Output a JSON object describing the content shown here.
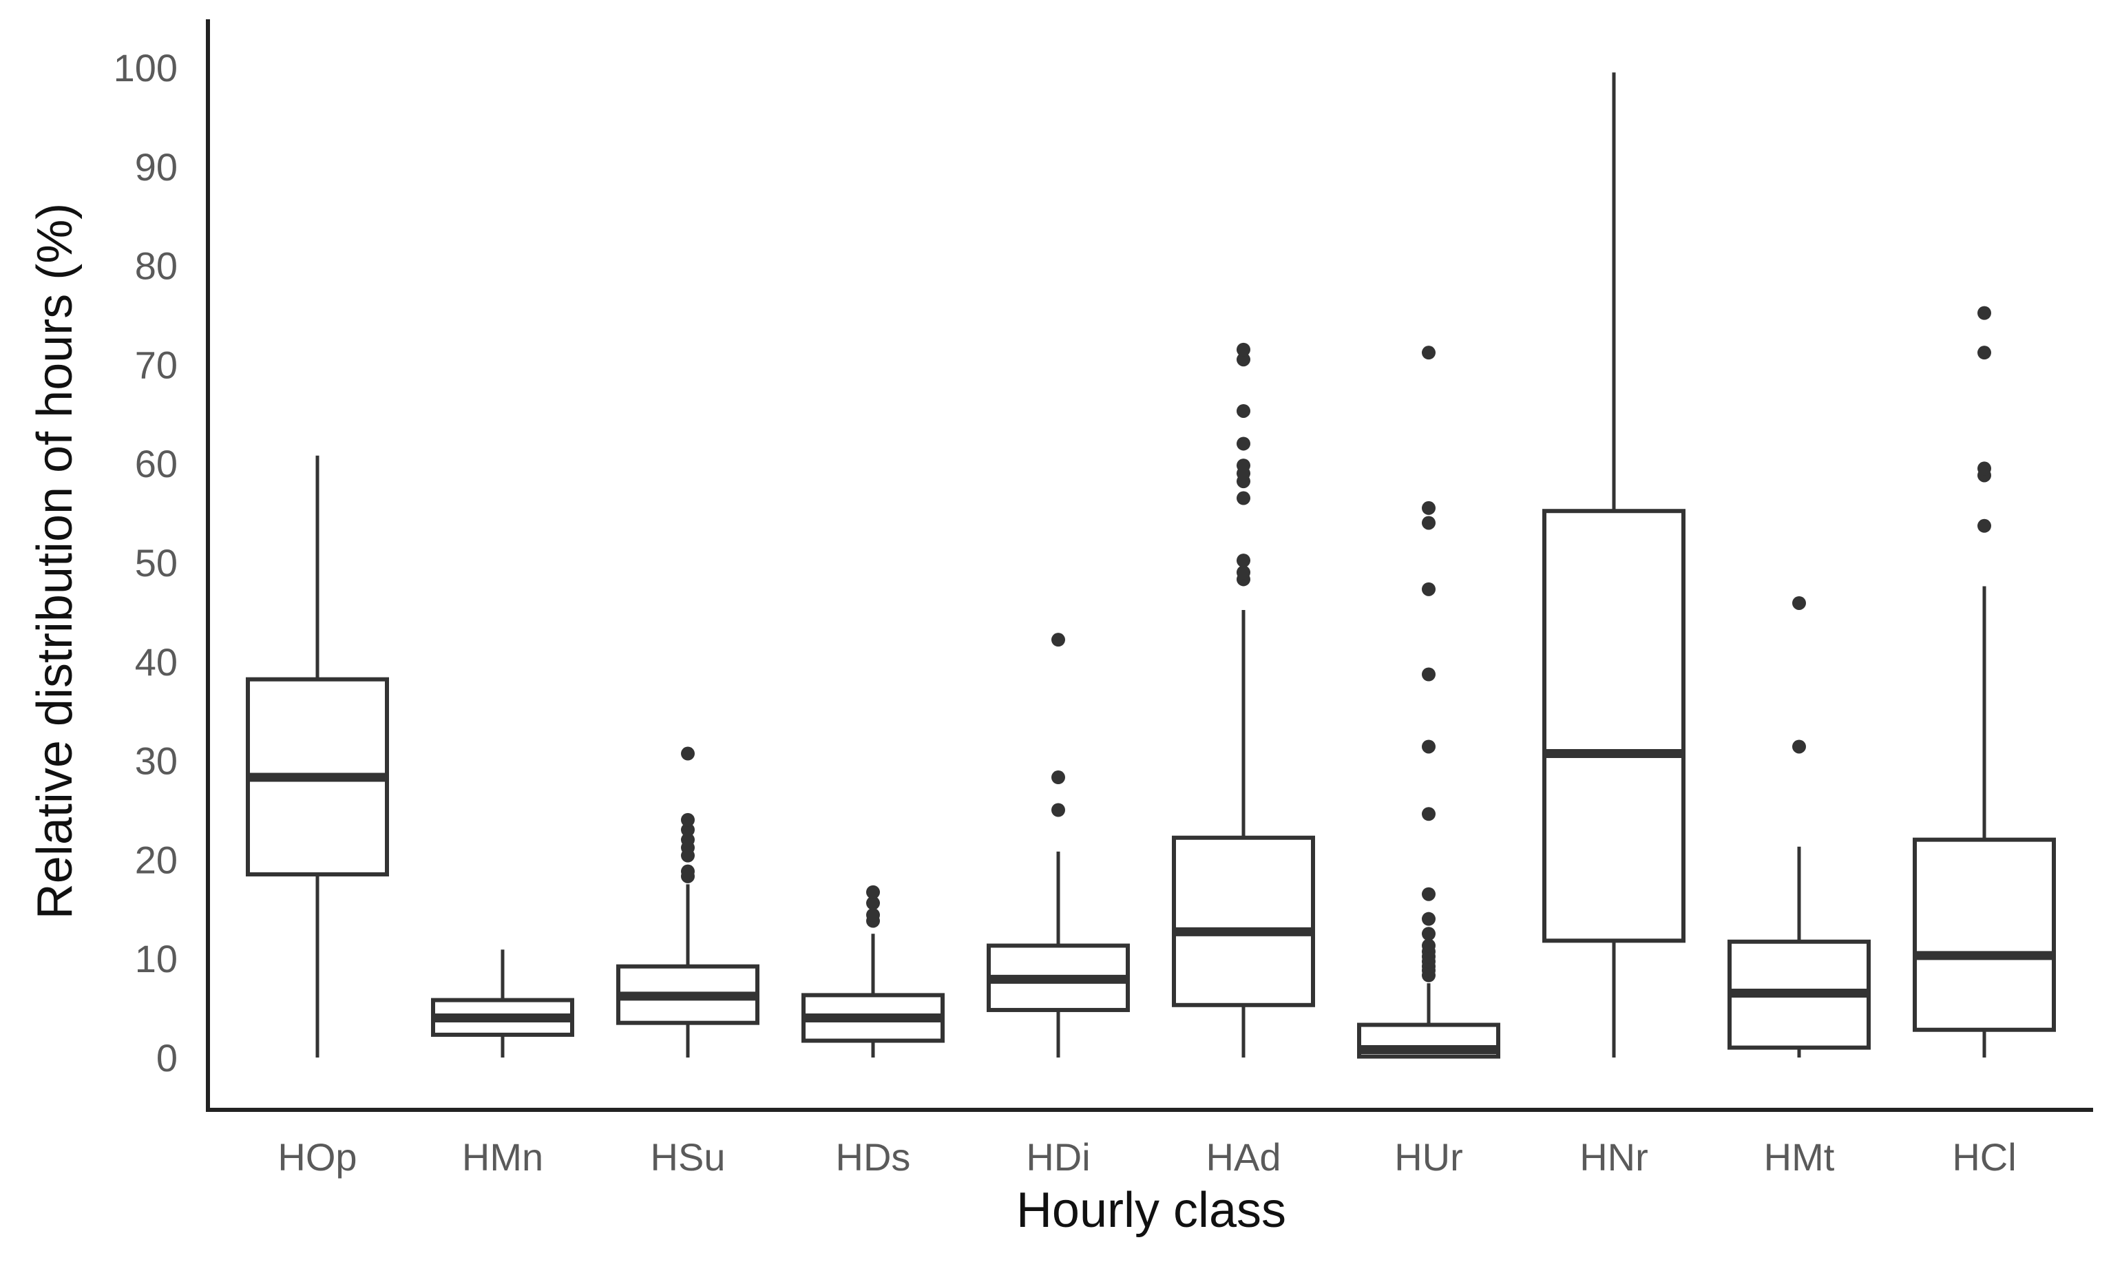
{
  "chart_data": {
    "type": "boxplot",
    "xlabel": "Hourly class",
    "ylabel": "Relative distribution of hours (%)",
    "ylim": [
      -5,
      105
    ],
    "yticks": [
      0,
      10,
      20,
      30,
      40,
      50,
      60,
      70,
      80,
      90,
      100
    ],
    "ytick_labels": [
      "0",
      "10",
      "20",
      "30",
      "40",
      "50",
      "60",
      "70",
      "80",
      "90",
      "100"
    ],
    "grid": false,
    "legend": "none",
    "colors": {
      "box_stroke": "#333333",
      "axis": "#222222",
      "tick_text": "#5a5a5a",
      "title_text": "#111111",
      "background": "#ffffff"
    },
    "categories": [
      "HOp",
      "HMn",
      "HSu",
      "HDs",
      "HDi",
      "HAd",
      "HUr",
      "HNr",
      "HMt",
      "HCl"
    ],
    "boxes": [
      {
        "category": "HOp",
        "whisker_low": 0,
        "q1": 18.5,
        "median": 28.3,
        "q3": 38.2,
        "whisker_high": 60.8,
        "outliers": []
      },
      {
        "category": "HMn",
        "whisker_low": 0,
        "q1": 2.3,
        "median": 4.0,
        "q3": 5.8,
        "whisker_high": 10.9,
        "outliers": []
      },
      {
        "category": "HSu",
        "whisker_low": 0,
        "q1": 3.5,
        "median": 6.2,
        "q3": 9.2,
        "whisker_high": 17.5,
        "outliers": [
          18.3,
          18.8,
          20.4,
          21.2,
          22.0,
          23.0,
          24.0,
          30.7
        ]
      },
      {
        "category": "HDs",
        "whisker_low": 0,
        "q1": 1.7,
        "median": 4.0,
        "q3": 6.3,
        "whisker_high": 12.5,
        "outliers": [
          13.8,
          14.4,
          15.6,
          16.7
        ]
      },
      {
        "category": "HDi",
        "whisker_low": 0,
        "q1": 4.8,
        "median": 7.9,
        "q3": 11.3,
        "whisker_high": 20.8,
        "outliers": [
          25.0,
          28.3,
          42.2
        ]
      },
      {
        "category": "HAd",
        "whisker_low": 0,
        "q1": 5.3,
        "median": 12.7,
        "q3": 22.2,
        "whisker_high": 45.2,
        "outliers": [
          48.3,
          49.0,
          50.2,
          56.5,
          58.2,
          59.0,
          59.8,
          62.0,
          65.3,
          70.5,
          71.5
        ]
      },
      {
        "category": "HUr",
        "whisker_low": 0,
        "q1": 0.1,
        "median": 0.8,
        "q3": 3.3,
        "whisker_high": 7.5,
        "outliers": [
          8.3,
          8.8,
          9.2,
          9.7,
          10.2,
          10.7,
          11.3,
          12.5,
          14.0,
          16.5,
          24.6,
          31.4,
          38.7,
          47.3,
          54.0,
          55.5,
          71.2
        ]
      },
      {
        "category": "HNr",
        "whisker_low": 0,
        "q1": 11.8,
        "median": 30.7,
        "q3": 55.2,
        "whisker_high": 99.5,
        "outliers": []
      },
      {
        "category": "HMt",
        "whisker_low": 0,
        "q1": 1.0,
        "median": 6.5,
        "q3": 11.7,
        "whisker_high": 21.3,
        "outliers": [
          31.4,
          45.9
        ]
      },
      {
        "category": "HCl",
        "whisker_low": 0,
        "q1": 2.8,
        "median": 10.3,
        "q3": 22.0,
        "whisker_high": 47.6,
        "outliers": [
          53.7,
          58.8,
          59.5,
          71.2,
          75.2
        ]
      }
    ]
  }
}
